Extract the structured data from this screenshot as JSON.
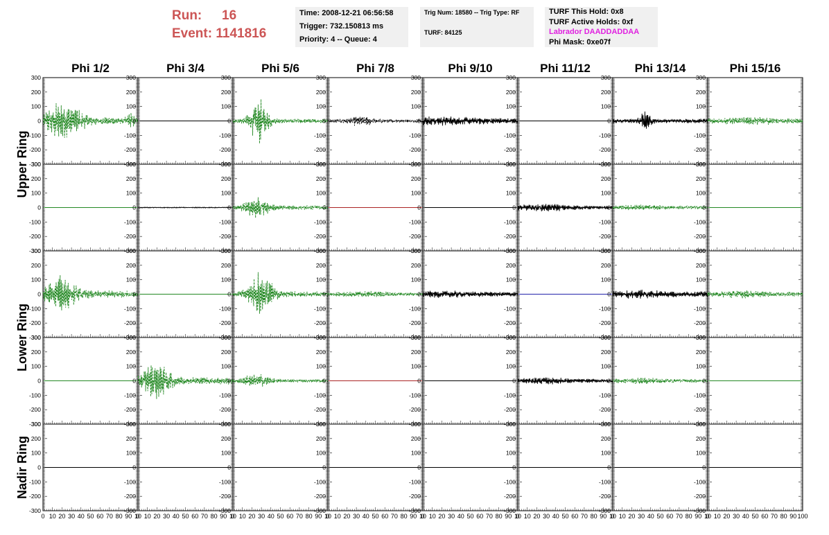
{
  "header": {
    "run_label": "Run:",
    "run_value": "16",
    "event_label": "Event:",
    "event_value": "1141816",
    "time": "Time: 2008-12-21 06:56:58",
    "trigger": "Trigger: 732.150813 ms",
    "priority": "Priority: 4 -- Queue: 4",
    "trig_num": "Trig Num: 18580 -- Trig Type: RF",
    "turf": "TURF: 84125",
    "turf_this_hold": "TURF This Hold: 0x8",
    "turf_active_holds": "TURF Active Holds: 0xf",
    "labrador": "Labrador DAADDADDAA",
    "phi_mask": "Phi Mask: 0xe07f"
  },
  "colors": {
    "header_red": "#cc5555",
    "magenta": "#e020e0",
    "green": "#228822",
    "black": "#000000",
    "red": "#aa2222",
    "blue": "#2222aa"
  },
  "chart_data": {
    "type": "line",
    "columns": [
      "Phi 1/2",
      "Phi 3/4",
      "Phi 5/6",
      "Phi 7/8",
      "Phi 9/10",
      "Phi 11/12",
      "Phi 13/14",
      "Phi 15/16"
    ],
    "row_groups": [
      "Upper Ring",
      "Lower Ring",
      "Nadir Ring"
    ],
    "ylim": [
      -300,
      300
    ],
    "xlim": [
      0,
      100
    ],
    "y_ticks": [
      300,
      200,
      100,
      0,
      -100,
      -200,
      -300
    ],
    "y_tick_labels": [
      "300",
      "200",
      "100",
      "0",
      "-100",
      "-200",
      "-300"
    ],
    "x_tick_labels": [
      "0",
      "10",
      "20",
      "30",
      "40",
      "50",
      "60",
      "70",
      "80",
      "90",
      "100"
    ],
    "x_tick_labels_compressed": [
      "0",
      "10",
      "20",
      "30",
      "40",
      "50",
      "60",
      "70",
      "80",
      "90",
      "10"
    ],
    "panels": [
      [
        {
          "color": "green",
          "dash": true,
          "amp": 125,
          "peak": 22,
          "width": 18,
          "noise": 25,
          "ends": true
        },
        {
          "color": "black",
          "dash": false,
          "amp": 0,
          "noise": 0
        },
        {
          "color": "green",
          "dash": true,
          "amp": 140,
          "peak": 28,
          "width": 10,
          "noise": 15
        },
        {
          "color": "black",
          "dash": true,
          "amp": 25,
          "peak": 35,
          "width": 14,
          "noise": 12
        },
        {
          "color": "black",
          "dash": false,
          "amp": 15,
          "peak": 20,
          "width": 40,
          "noise": 18
        },
        {
          "color": "black",
          "dash": false,
          "amp": 0,
          "noise": 0
        },
        {
          "color": "black",
          "dash": false,
          "amp": 50,
          "peak": 34,
          "width": 6,
          "noise": 15
        },
        {
          "color": "green",
          "dash": true,
          "amp": 15,
          "peak": 40,
          "width": 35,
          "noise": 15
        }
      ],
      [
        {
          "color": "green",
          "dash": false,
          "amp": 0,
          "noise": 0
        },
        {
          "color": "black",
          "dash": false,
          "amp": 0,
          "noise": 3
        },
        {
          "color": "green",
          "dash": true,
          "amp": 65,
          "peak": 25,
          "width": 12,
          "noise": 15
        },
        {
          "color": "red",
          "dash": false,
          "amp": 0,
          "noise": 0
        },
        {
          "color": "black",
          "dash": false,
          "amp": 0,
          "noise": 0
        },
        {
          "color": "black",
          "dash": false,
          "amp": 15,
          "peak": 30,
          "width": 30,
          "noise": 12
        },
        {
          "color": "green",
          "dash": true,
          "amp": 10,
          "peak": 30,
          "width": 30,
          "noise": 10
        },
        {
          "color": "green",
          "dash": false,
          "amp": 0,
          "noise": 0
        }
      ],
      [
        {
          "color": "green",
          "dash": true,
          "amp": 110,
          "peak": 20,
          "width": 15,
          "noise": 25
        },
        {
          "color": "green",
          "dash": false,
          "amp": 0,
          "noise": 0
        },
        {
          "color": "green",
          "dash": true,
          "amp": 140,
          "peak": 30,
          "width": 12,
          "noise": 20
        },
        {
          "color": "green",
          "dash": true,
          "amp": 10,
          "peak": 40,
          "width": 30,
          "noise": 12
        },
        {
          "color": "black",
          "dash": false,
          "amp": 10,
          "peak": 20,
          "width": 40,
          "noise": 15
        },
        {
          "color": "blue",
          "dash": false,
          "amp": 0,
          "noise": 0
        },
        {
          "color": "black",
          "dash": false,
          "amp": 15,
          "peak": 30,
          "width": 30,
          "noise": 18
        },
        {
          "color": "green",
          "dash": true,
          "amp": 15,
          "peak": 35,
          "width": 20,
          "noise": 15
        }
      ],
      [
        {
          "color": "green",
          "dash": false,
          "amp": 0,
          "noise": 0
        },
        {
          "color": "green",
          "dash": true,
          "amp": 110,
          "peak": 20,
          "width": 15,
          "noise": 25
        },
        {
          "color": "green",
          "dash": true,
          "amp": 40,
          "peak": 25,
          "width": 15,
          "noise": 10
        },
        {
          "color": "red",
          "dash": false,
          "amp": 0,
          "noise": 0
        },
        {
          "color": "black",
          "dash": false,
          "amp": 0,
          "noise": 0
        },
        {
          "color": "black",
          "dash": false,
          "amp": 12,
          "peak": 30,
          "width": 30,
          "noise": 12
        },
        {
          "color": "green",
          "dash": true,
          "amp": 12,
          "peak": 30,
          "width": 30,
          "noise": 10
        },
        {
          "color": "green",
          "dash": false,
          "amp": 0,
          "noise": 0
        }
      ],
      [
        {
          "color": "black",
          "dash": false,
          "amp": 0,
          "noise": 0
        },
        {
          "color": "black",
          "dash": false,
          "amp": 0,
          "noise": 0
        },
        {
          "color": "black",
          "dash": false,
          "amp": 0,
          "noise": 0
        },
        {
          "color": "black",
          "dash": false,
          "amp": 0,
          "noise": 0
        },
        {
          "color": "black",
          "dash": false,
          "amp": 0,
          "noise": 0
        },
        {
          "color": "black",
          "dash": false,
          "amp": 0,
          "noise": 0
        },
        {
          "color": "black",
          "dash": false,
          "amp": 0,
          "noise": 0
        },
        {
          "color": "black",
          "dash": false,
          "amp": 0,
          "noise": 0
        }
      ]
    ]
  }
}
